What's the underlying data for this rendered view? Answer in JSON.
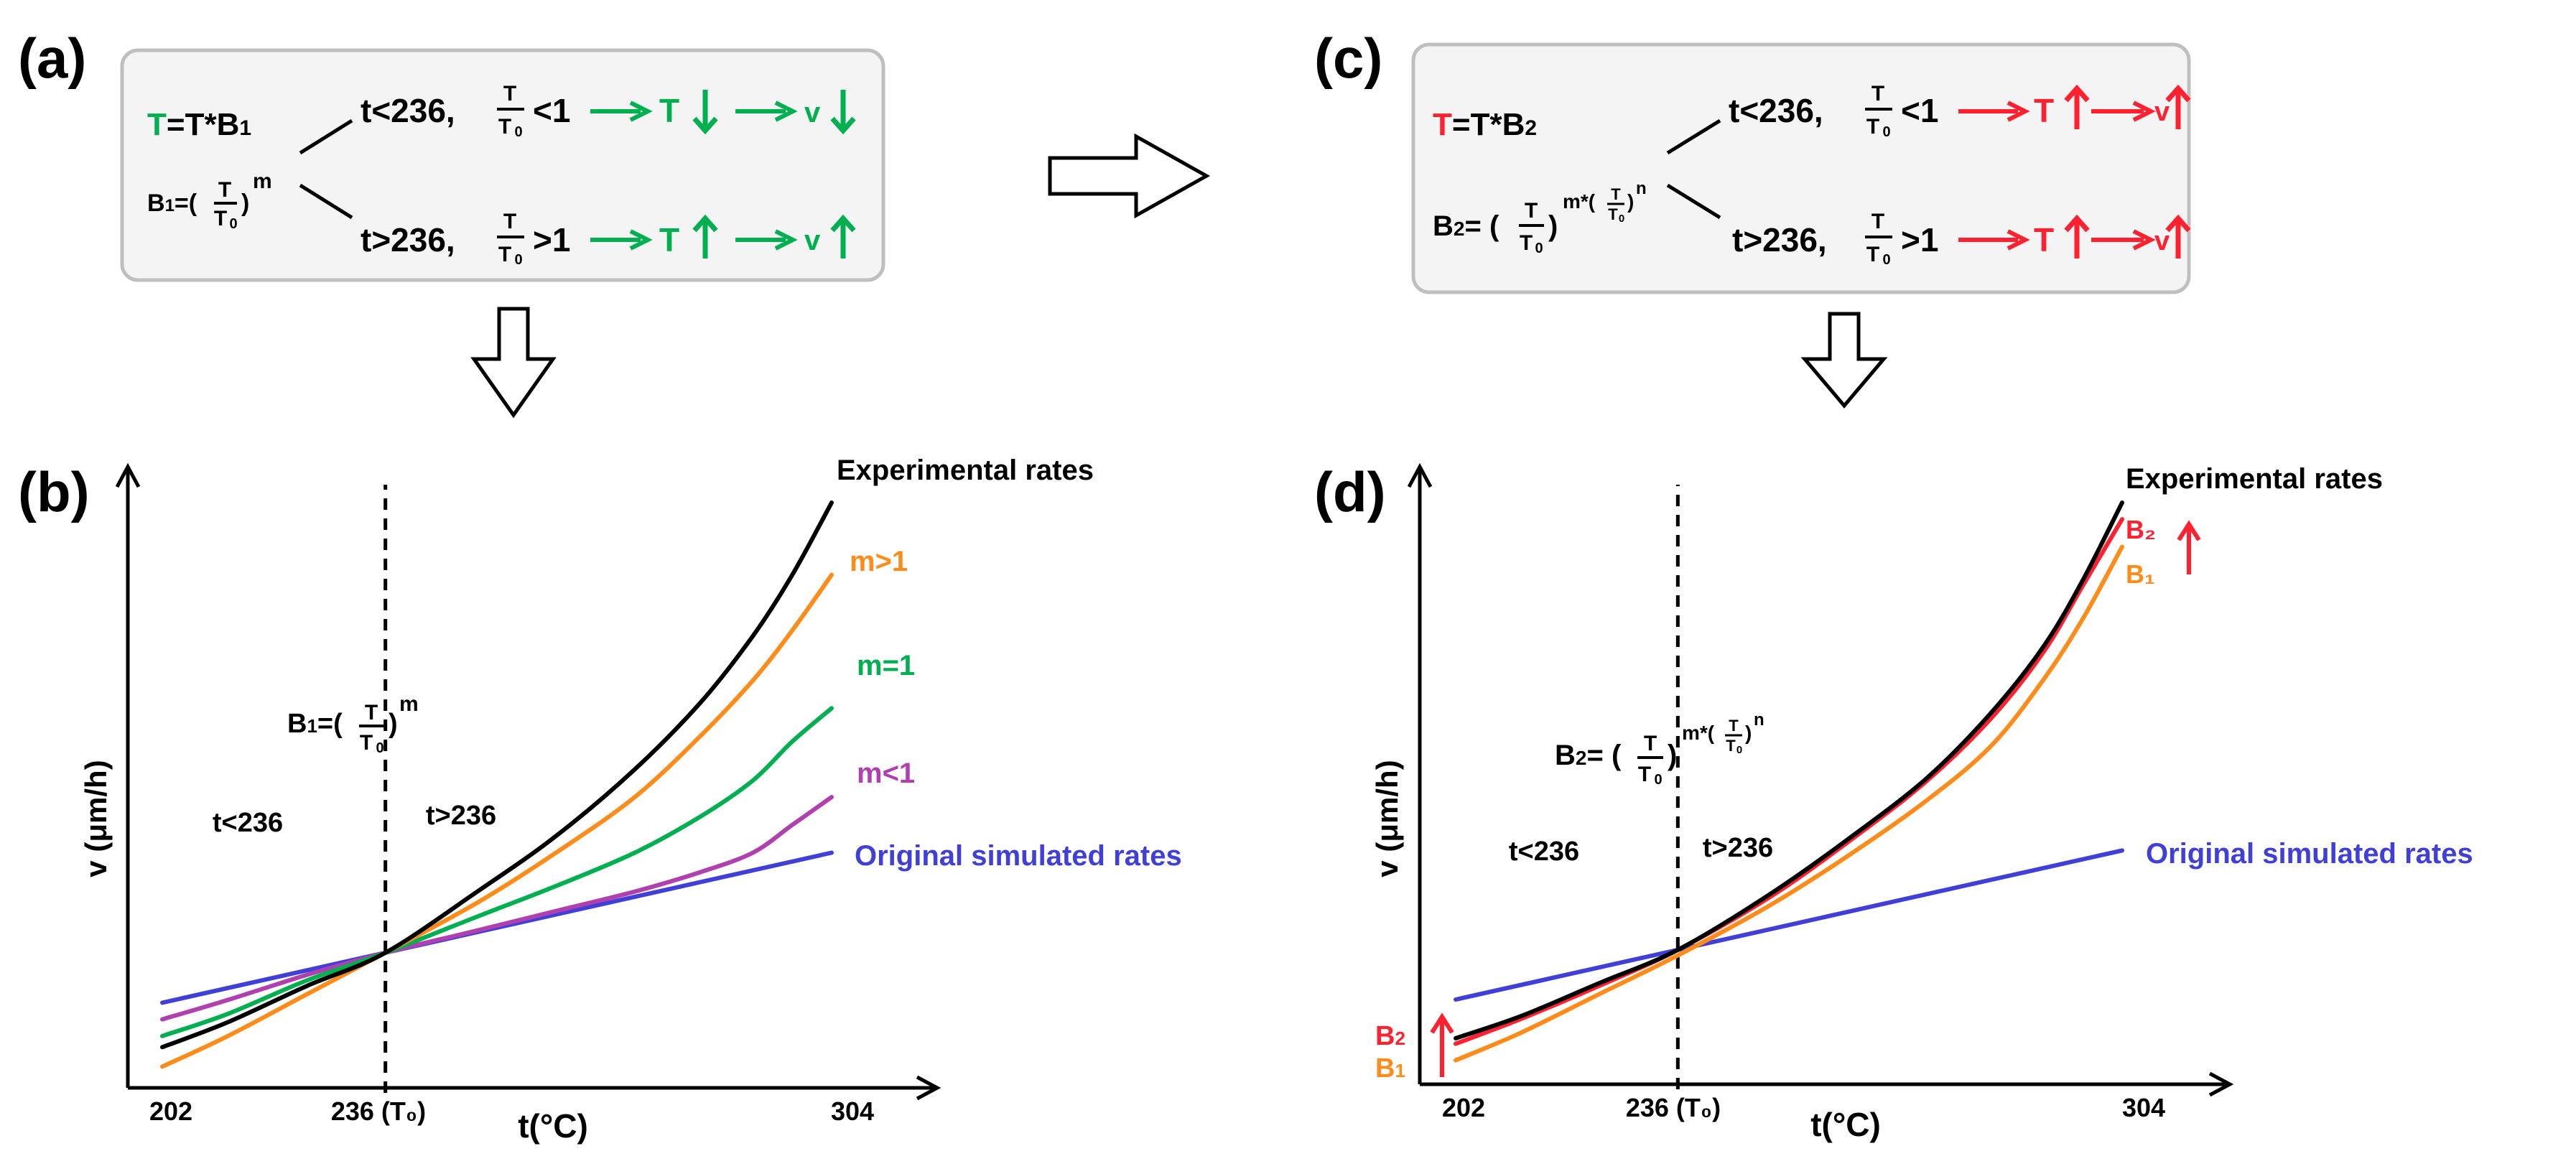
{
  "colors": {
    "green": "#00b050",
    "red": "#ff2030",
    "orange": "#ff8c1a",
    "purple": "#b040b0",
    "blue": "#4040d8",
    "black": "#000000",
    "box_border": "#bfbfbf",
    "box_fill": "#f4f4f4"
  },
  "panel_a": {
    "label": "(a)",
    "eq_T_lhs": "T",
    "eq_T_rhs": "=T*B",
    "eq_T_sub": "1",
    "eq_B": "B",
    "eq_B_sub": "1",
    "eq_B_eq": "=(",
    "eq_B_close": ")",
    "eq_B_exp": "m",
    "frac_num": "T",
    "frac_den": "T",
    "frac_den_sub": "0",
    "branch_lt": {
      "cond": "t<236,",
      "rel": "<1",
      "T": "T",
      "v": "v"
    },
    "branch_gt": {
      "cond": "t>236,",
      "rel": ">1",
      "T": "T",
      "v": "v"
    }
  },
  "panel_c": {
    "label": "(c)",
    "eq_T_lhs": "T",
    "eq_T_rhs": "=T*B",
    "eq_T_sub": "2",
    "eq_B": "B",
    "eq_B_sub": "2",
    "eq_B_eq": "= (",
    "eq_B_close": ")",
    "eq_B_exp_m": "m*(",
    "eq_B_exp_close": ")",
    "eq_B_exp_n": "n",
    "frac_num": "T",
    "frac_den": "T",
    "frac_den_sub": "0",
    "branch_lt": {
      "cond": "t<236,",
      "rel": "<1",
      "T": "T",
      "v": "v"
    },
    "branch_gt": {
      "cond": "t>236,",
      "rel": ">1",
      "T": "T",
      "v": "v"
    }
  },
  "chart_data": [
    {
      "panel": "(b)",
      "type": "line",
      "xlabel": "t(°C)",
      "ylabel": "v (μm/h)",
      "x_ticks": [
        "202",
        "236 (T₀)",
        "304"
      ],
      "x_tick_values": [
        202,
        236,
        304
      ],
      "xlim": [
        197,
        322
      ],
      "ylim": [
        0,
        100
      ],
      "vline_x": 236,
      "region_labels": [
        "t<236",
        "t>236"
      ],
      "annotation": {
        "B": "B",
        "sub": "1",
        "eq": "=(",
        "close": ")",
        "exp": "m",
        "num": "T",
        "den": "T",
        "den_sub": "0"
      },
      "series": [
        {
          "name": "Experimental rates",
          "color": "black",
          "x": [
            202,
            212,
            224,
            236,
            250,
            262,
            274,
            284,
            292,
            298,
            304
          ],
          "y": [
            5,
            9.5,
            16,
            22,
            33,
            43,
            55,
            67,
            79,
            90,
            103
          ]
        },
        {
          "name": "m>1",
          "color": "orange",
          "x": [
            202,
            212,
            224,
            236,
            250,
            262,
            274,
            284,
            292,
            298,
            304
          ],
          "y": [
            1.5,
            7,
            14.5,
            22,
            31,
            40,
            50,
            61,
            71,
            80,
            90
          ]
        },
        {
          "name": "m=1",
          "color": "green",
          "x": [
            202,
            212,
            224,
            236,
            250,
            262,
            274,
            284,
            292,
            298,
            304
          ],
          "y": [
            7,
            11,
            17,
            22,
            28.5,
            34,
            40,
            46.5,
            53,
            60,
            66
          ]
        },
        {
          "name": "m<1",
          "color": "purple",
          "x": [
            202,
            212,
            224,
            236,
            250,
            262,
            274,
            284,
            292,
            298,
            304
          ],
          "y": [
            10,
            13.5,
            18,
            22,
            26,
            29.5,
            33,
            36.5,
            40,
            45,
            50
          ]
        },
        {
          "name": "Original simulated rates",
          "color": "blue",
          "x": [
            202,
            304
          ],
          "y": [
            13,
            40
          ]
        }
      ]
    },
    {
      "panel": "(d)",
      "type": "line",
      "xlabel": "t(°C)",
      "ylabel": "v (μm/h)",
      "x_ticks": [
        "202",
        "236 (T₀)",
        "304"
      ],
      "x_tick_values": [
        202,
        236,
        304
      ],
      "xlim": [
        197,
        322
      ],
      "ylim": [
        0,
        100
      ],
      "vline_x": 236,
      "region_labels": [
        "t<236",
        "t>236"
      ],
      "annotation": {
        "B": "B",
        "sub": "2",
        "eq": "= (",
        "close": ")",
        "exp_m": "m*(",
        "exp_close": ")",
        "exp_n": "n",
        "num": "T",
        "den": "T",
        "den_sub": "0"
      },
      "side_labels": {
        "B2": "B",
        "B2_sub": "2",
        "B1": "B",
        "B1_sub": "1"
      },
      "series": [
        {
          "name": "Experimental rates",
          "color": "black",
          "x": [
            202,
            212,
            224,
            236,
            250,
            262,
            274,
            284,
            292,
            298,
            304
          ],
          "y": [
            6,
            10,
            16,
            22,
            32,
            42,
            53,
            65,
            77,
            89,
            103
          ]
        },
        {
          "name": "B₂",
          "color": "red",
          "x": [
            202,
            212,
            224,
            236,
            250,
            262,
            274,
            284,
            292,
            298,
            304
          ],
          "y": [
            5,
            9.5,
            15.5,
            22,
            31.5,
            41.5,
            52.5,
            64,
            76,
            88,
            100
          ]
        },
        {
          "name": "B₁",
          "color": "orange",
          "x": [
            202,
            212,
            224,
            236,
            250,
            262,
            274,
            284,
            292,
            298,
            304
          ],
          "y": [
            2,
            7,
            14,
            21,
            30,
            39,
            49,
            59,
            71,
            82,
            95
          ]
        },
        {
          "name": "Original simulated rates",
          "color": "blue",
          "x": [
            202,
            304
          ],
          "y": [
            13,
            40
          ]
        }
      ]
    }
  ]
}
